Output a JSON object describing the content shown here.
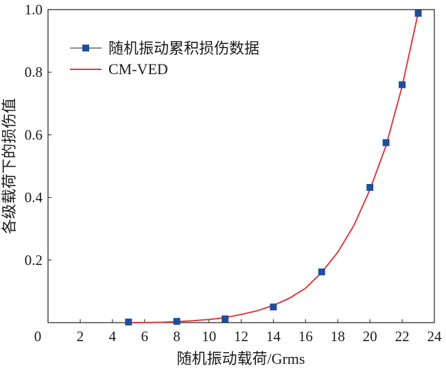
{
  "chart_data": {
    "type": "scatter",
    "xlabel": "随机振动载荷/Grms",
    "ylabel": "各级载荷下的损伤值",
    "xlim": [
      0,
      24
    ],
    "ylim": [
      0,
      1.0
    ],
    "xticks": [
      "0",
      "2",
      "4",
      "6",
      "8",
      "10",
      "12",
      "14",
      "16",
      "18",
      "20",
      "22",
      "24"
    ],
    "yticks": [
      "0.2",
      "0.4",
      "0.6",
      "0.8",
      "1.0"
    ],
    "grid": false,
    "legend_position": "top-left",
    "series": [
      {
        "name": "随机振动累积损伤数据",
        "kind": "scatter",
        "marker": "square",
        "color": "#1f4e9c",
        "x": [
          5,
          8,
          11,
          14,
          17,
          20,
          21,
          22,
          23
        ],
        "y": [
          0.002,
          0.004,
          0.012,
          0.05,
          0.162,
          0.432,
          0.575,
          0.76,
          0.988
        ]
      },
      {
        "name": "CM-VED",
        "kind": "line",
        "color": "#e0393b",
        "x": [
          5,
          6,
          7,
          8,
          9,
          10,
          11,
          12,
          13,
          14,
          15,
          16,
          17,
          18,
          19,
          20,
          21,
          22,
          23
        ],
        "y": [
          0.0,
          0.0,
          0.001,
          0.003,
          0.006,
          0.01,
          0.016,
          0.026,
          0.038,
          0.055,
          0.078,
          0.11,
          0.16,
          0.225,
          0.31,
          0.425,
          0.565,
          0.755,
          0.99
        ]
      }
    ]
  }
}
